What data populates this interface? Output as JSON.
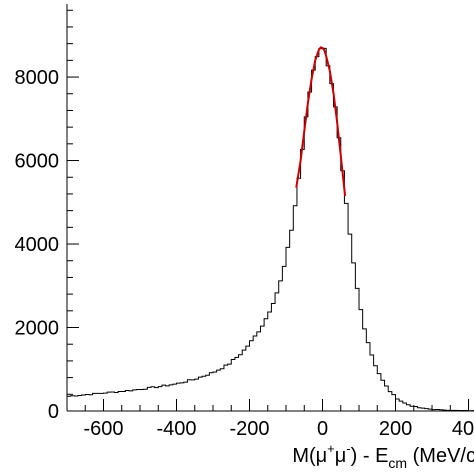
{
  "chart_data": {
    "type": "histogram",
    "xlabel": "M(μ⁺μ⁻) - E_cm (MeV/c",
    "xlabel_parts": {
      "pre": "M(μ",
      "sup1": "+",
      "mid": "μ",
      "sup2": "-",
      "post1": ") - E",
      "sub": "cm",
      "post2": " (MeV/c"
    },
    "ylabel": "",
    "xlim": [
      -700,
      415
    ],
    "ylim": [
      0,
      9750
    ],
    "x_ticks": [
      -600,
      -400,
      -200,
      0,
      200,
      400
    ],
    "x_tick_labels": [
      "-600",
      "-400",
      "-200",
      "0",
      "200",
      "400"
    ],
    "y_ticks": [
      0,
      2000,
      4000,
      6000,
      8000
    ],
    "y_tick_labels": [
      "0",
      "2000",
      "4000",
      "6000",
      "8000"
    ],
    "grid": false,
    "series": [
      {
        "kind": "histogram",
        "color": "#000000",
        "bin_width": 10,
        "x": [
          -700,
          -650,
          -600,
          -550,
          -500,
          -450,
          -400,
          -350,
          -300,
          -260,
          -220,
          -190,
          -160,
          -140,
          -120,
          -110,
          -100,
          -90,
          -80,
          -70,
          -60,
          -50,
          -40,
          -30,
          -20,
          -10,
          -5,
          0,
          5,
          10,
          20,
          30,
          40,
          50,
          60,
          70,
          80,
          90,
          100,
          110,
          120,
          140,
          160,
          180,
          200,
          220,
          240,
          270,
          300,
          340,
          380,
          415
        ],
        "y": [
          350,
          390,
          430,
          470,
          520,
          580,
          650,
          760,
          920,
          1100,
          1400,
          1720,
          2120,
          2500,
          2950,
          3250,
          3650,
          4100,
          4600,
          5250,
          5900,
          6650,
          7350,
          7950,
          8400,
          8650,
          8720,
          8700,
          8650,
          8500,
          8150,
          7600,
          6900,
          6100,
          5300,
          4550,
          3850,
          3200,
          2650,
          2200,
          1800,
          1200,
          800,
          520,
          330,
          210,
          130,
          70,
          40,
          20,
          10,
          8
        ]
      },
      {
        "kind": "fit",
        "color": "#cc0000",
        "x": [
          -72,
          -60,
          -50,
          -40,
          -30,
          -20,
          -10,
          -5,
          0,
          5,
          10,
          20,
          30,
          40,
          50,
          60,
          62
        ],
        "y": [
          5350,
          6000,
          6700,
          7380,
          7950,
          8400,
          8650,
          8710,
          8700,
          8640,
          8500,
          8150,
          7620,
          6920,
          6120,
          5300,
          5150
        ]
      }
    ]
  }
}
